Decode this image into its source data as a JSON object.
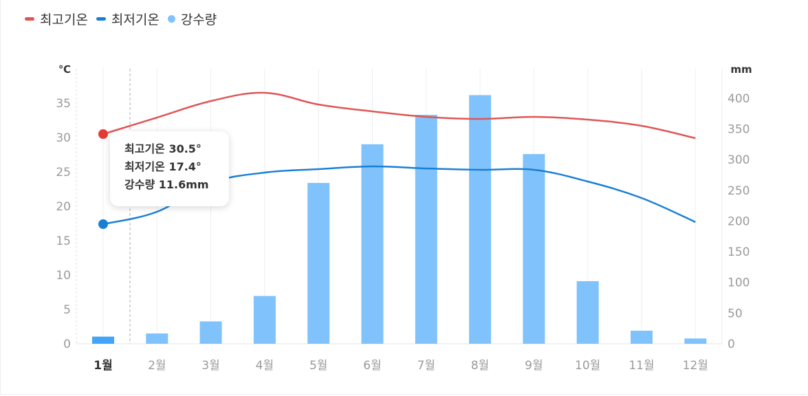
{
  "legend": [
    {
      "label": "최고기온",
      "color": "#e05555",
      "shape": "dash"
    },
    {
      "label": "최저기온",
      "color": "#1a7fd4",
      "shape": "dash"
    },
    {
      "label": "강수량",
      "color": "#80c2fb",
      "shape": "dot"
    }
  ],
  "tooltip": {
    "line1": "최고기온 30.5°",
    "line2": "최저기온 17.4°",
    "line3": "강수량 11.6mm"
  },
  "chart_data": {
    "type": "bar",
    "categories": [
      "1월",
      "2월",
      "3월",
      "4월",
      "5월",
      "6월",
      "7월",
      "8월",
      "9월",
      "10월",
      "11월",
      "12월"
    ],
    "active_category": "1월",
    "series": [
      {
        "name": "최고기온",
        "type": "line",
        "axis": "left",
        "color": "#e05555",
        "values": [
          30.5,
          32.9,
          35.3,
          36.5,
          34.8,
          33.8,
          33.0,
          32.7,
          33.0,
          32.6,
          31.7,
          29.9
        ]
      },
      {
        "name": "최저기온",
        "type": "line",
        "axis": "left",
        "color": "#1a7fd4",
        "values": [
          17.4,
          19.2,
          23.4,
          24.9,
          25.4,
          25.8,
          25.5,
          25.3,
          25.3,
          23.6,
          21.2,
          17.7
        ]
      },
      {
        "name": "강수량",
        "type": "bar",
        "axis": "right",
        "color": "#80c2fb",
        "active_color": "#42a5f5",
        "values": [
          11.6,
          16.8,
          36.4,
          77.8,
          262.0,
          325.0,
          373.0,
          405.0,
          309.0,
          102.0,
          21.3,
          8.6
        ]
      }
    ],
    "y_left": {
      "unit": "℃",
      "ticks": [
        0,
        5,
        10,
        15,
        20,
        25,
        30,
        35
      ],
      "lim": [
        0,
        40
      ]
    },
    "y_right": {
      "unit": "mm",
      "ticks": [
        0,
        50,
        100,
        150,
        200,
        250,
        300,
        350,
        400
      ],
      "lim": [
        0,
        450
      ]
    },
    "grid": "vertical"
  }
}
